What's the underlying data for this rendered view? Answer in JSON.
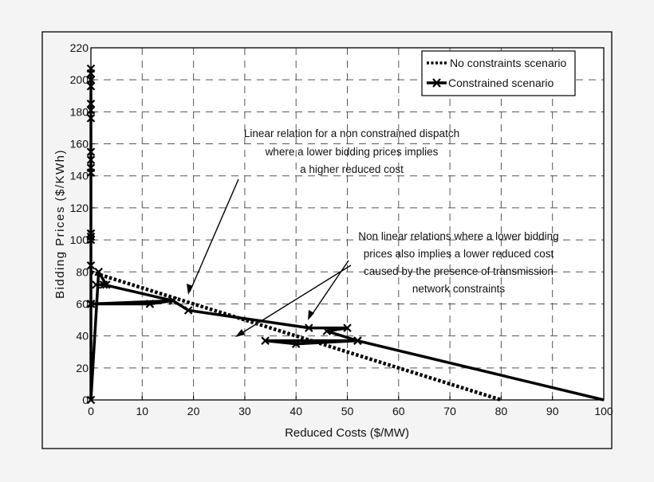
{
  "chart_data": {
    "type": "line",
    "title": "",
    "xlabel": "Reduced Costs ($/MW)",
    "ylabel": "Bidding Prices ($/KWh)",
    "xlim": [
      0,
      100
    ],
    "ylim": [
      0,
      220
    ],
    "xticks": [
      0,
      10,
      20,
      30,
      40,
      50,
      60,
      70,
      80,
      90,
      100
    ],
    "yticks": [
      0,
      20,
      40,
      60,
      80,
      100,
      120,
      140,
      160,
      180,
      200,
      220
    ],
    "grid": true,
    "legend_position": "upper right",
    "legend": [
      "No constraints scenario",
      "Constrained scenario"
    ],
    "series": [
      {
        "name": "No constraints scenario",
        "style": "dotted",
        "x": [
          0,
          80
        ],
        "y": [
          80,
          0
        ]
      },
      {
        "name": "Constrained scenario",
        "style": "solid-x-markers",
        "x": [
          0,
          0,
          0,
          0,
          0,
          0,
          0,
          0,
          0,
          0,
          0,
          0,
          0,
          0,
          0,
          0,
          0,
          1.5,
          3,
          1,
          2.5,
          16,
          0,
          0,
          11.5,
          16,
          19,
          42.5,
          50,
          46,
          52,
          34,
          40,
          52,
          100
        ],
        "y": [
          207,
          204,
          200,
          196,
          185,
          181,
          176,
          155,
          150,
          145,
          142,
          104,
          102,
          100,
          84,
          60,
          0,
          80,
          72,
          72,
          72,
          62,
          60,
          60,
          60,
          62,
          56,
          45,
          45,
          43,
          37,
          37,
          35,
          37,
          0
        ]
      }
    ],
    "annotations": [
      {
        "text": "Linear relation for a non constrained dispatch\nwhere a lower bidding prices implies\na higher reduced cost",
        "arrow_to": [
          19,
          62
        ]
      },
      {
        "text": "Non linear relations where a lower bidding\nprices also implies a lower reduced cost\ncaused by the presence of transmission\nnetwork constraints",
        "arrows_to": [
          [
            42.5,
            46
          ],
          [
            28,
            40
          ]
        ]
      }
    ]
  },
  "annotation1": {
    "line1": "Linear relation for a non constrained dispatch",
    "line2": "where a lower bidding prices implies",
    "line3": "a higher reduced cost"
  },
  "annotation2": {
    "line1": "Non linear relations where a lower bidding",
    "line2": "prices also implies a lower reduced cost",
    "line3": "caused by the presence of transmission",
    "line4": "network constraints"
  }
}
